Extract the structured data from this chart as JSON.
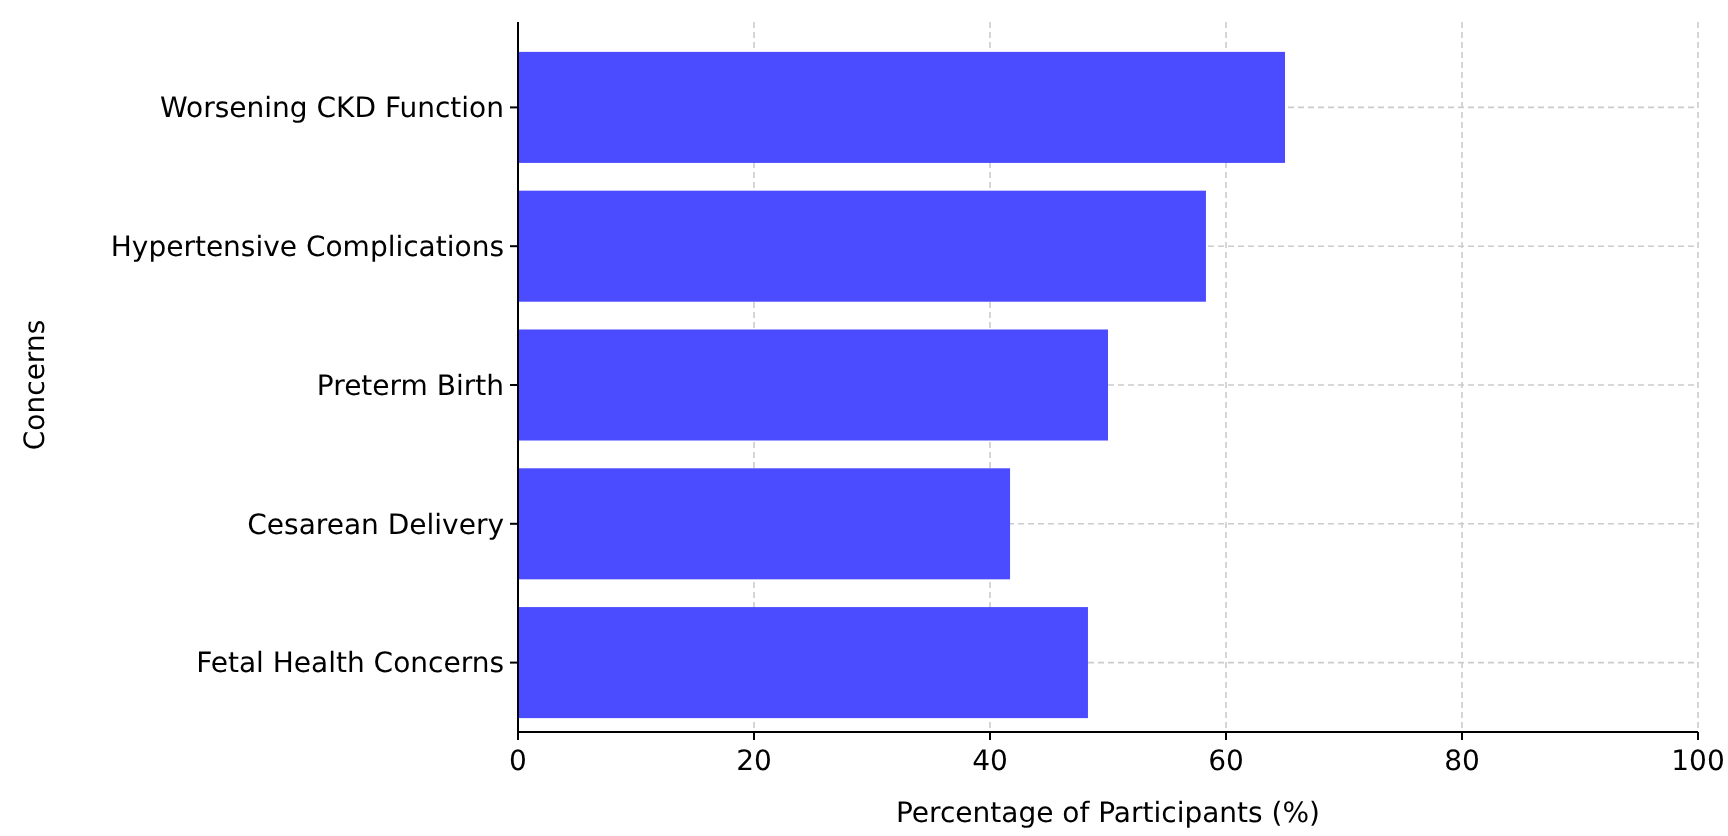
{
  "chart_data": {
    "type": "bar",
    "orientation": "horizontal",
    "xlabel": "Percentage of Participants (%)",
    "ylabel": "Concerns",
    "categories": [
      "Worsening CKD Function",
      "Hypertensive Complications",
      "Preterm Birth",
      "Cesarean Delivery",
      "Fetal Health Concerns"
    ],
    "values": [
      65,
      58.3,
      50,
      41.7,
      48.3
    ],
    "color": "#4b4bff",
    "xlim": [
      0,
      100
    ],
    "xticks": [
      0,
      20,
      40,
      60,
      80,
      100
    ],
    "grid": true
  }
}
